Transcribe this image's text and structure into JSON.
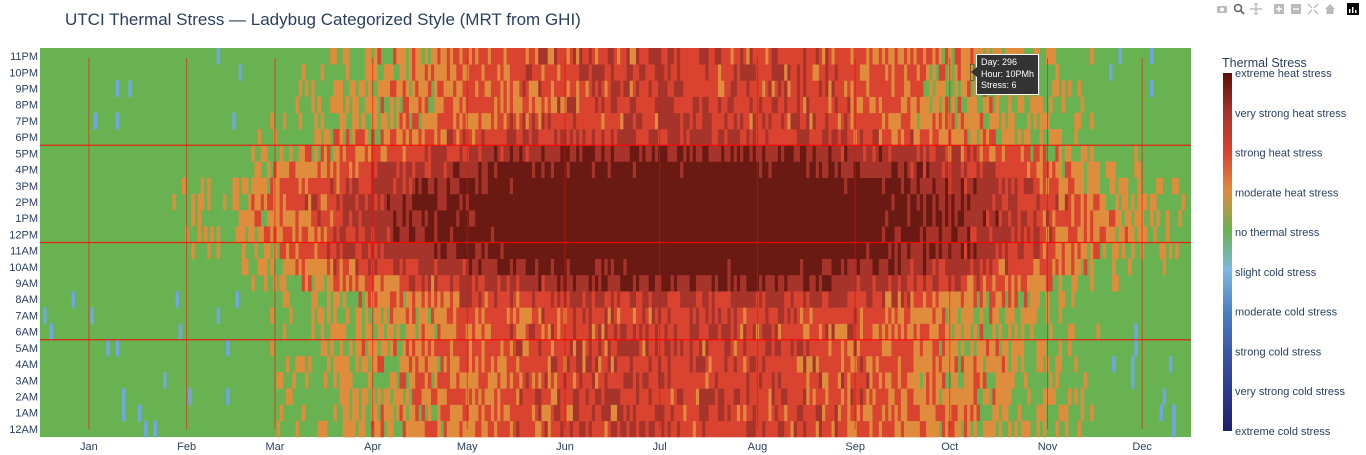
{
  "title": "UTCI Thermal Stress — Ladybug Categorized Style (MRT from GHI)",
  "modebar": [
    {
      "name": "camera-icon",
      "title": "Download plot as a png"
    },
    {
      "name": "zoom-icon",
      "title": "Zoom"
    },
    {
      "name": "pan-icon",
      "title": "Pan"
    },
    {
      "name": "zoom-in-icon",
      "title": "Zoom in"
    },
    {
      "name": "zoom-out-icon",
      "title": "Zoom out"
    },
    {
      "name": "autoscale-icon",
      "title": "Autoscale"
    },
    {
      "name": "home-icon",
      "title": "Reset axes"
    },
    {
      "name": "plotly-logo-icon",
      "title": "Produced with Plotly"
    }
  ],
  "tooltip": {
    "line1": "Day: 296",
    "line2": "Hour: 10PMh",
    "line3": "Stress: 6"
  },
  "colors": {
    "extreme_heat": "#6b1a13",
    "very_strong_heat": "#a7342b",
    "strong_heat": "#d9432f",
    "moderate_heat": "#df8c3d",
    "no_stress": "#69b251",
    "slight_cold": "#6fa8dc",
    "grid_red": "#ff0000"
  },
  "chart_data": {
    "type": "heatmap",
    "title": "UTCI Thermal Stress — Ladybug Categorized Style (MRT from GHI)",
    "x_tick_labels": [
      "Jan",
      "Feb",
      "Mar",
      "Apr",
      "May",
      "Jun",
      "Jul",
      "Aug",
      "Sep",
      "Oct",
      "Nov",
      "Dec"
    ],
    "x_range_days": [
      1,
      365
    ],
    "y_tick_labels": [
      "12AM",
      "1AM",
      "2AM",
      "3AM",
      "4AM",
      "5AM",
      "6AM",
      "7AM",
      "8AM",
      "9AM",
      "10AM",
      "11AM",
      "12PM",
      "1PM",
      "2PM",
      "3PM",
      "4PM",
      "5PM",
      "6PM",
      "7PM",
      "8PM",
      "9PM",
      "10PM",
      "11PM"
    ],
    "y_range_hours": [
      0,
      23
    ],
    "horizontal_reference_hours": [
      6,
      12,
      18
    ],
    "colorbar": {
      "title": "Thermal Stress",
      "labels": [
        "extreme heat stress",
        "very strong heat stress",
        "strong heat stress",
        "moderate heat stress",
        "no thermal stress",
        "slight cold stress",
        "moderate cold stress",
        "strong cold stress",
        "very strong cold stress",
        "extreme cold stress"
      ],
      "range": [
        -4,
        5
      ]
    },
    "legend_position": "right",
    "grid": true
  }
}
